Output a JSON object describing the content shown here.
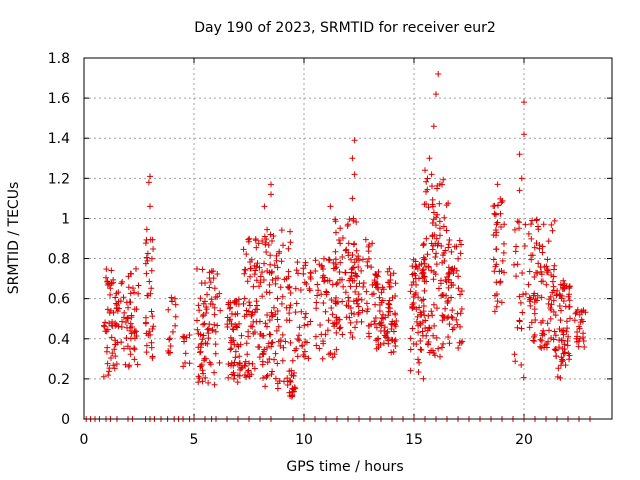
{
  "chart_data": {
    "type": "scatter",
    "title": "Day 190 of 2023, SRMTID for receiver eur2",
    "xlabel": "GPS time / hours",
    "ylabel": "SRMTID / TECUs",
    "xlim": [
      0,
      24
    ],
    "ylim": [
      0,
      1.8
    ],
    "xticks": [
      "0",
      "5",
      "10",
      "15",
      "20"
    ],
    "yticks": [
      "0",
      "0.2",
      "0.4",
      "0.6",
      "0.8",
      "1",
      "1.2",
      "1.4",
      "1.6",
      "1.8"
    ],
    "grid": true,
    "marker": "+",
    "color": "#e00000",
    "series": [
      {
        "name": "SRMTID",
        "clusters": [
          {
            "x": [
              0.9,
              1.6
            ],
            "y": [
              0.2,
              0.75
            ],
            "n": 60
          },
          {
            "x": [
              1.6,
              2.5
            ],
            "y": [
              0.25,
              0.75
            ],
            "n": 55
          },
          {
            "x": [
              2.8,
              3.2
            ],
            "y": [
              0.3,
              0.95
            ],
            "n": 35
          },
          {
            "x": [
              3.8,
              4.2
            ],
            "y": [
              0.3,
              0.62
            ],
            "n": 15
          },
          {
            "x": [
              4.5,
              4.8
            ],
            "y": [
              0.25,
              0.42
            ],
            "n": 10
          },
          {
            "x": [
              5.1,
              6.2
            ],
            "y": [
              0.15,
              0.75
            ],
            "n": 80
          },
          {
            "x": [
              6.5,
              7.2
            ],
            "y": [
              0.18,
              0.6
            ],
            "n": 60
          },
          {
            "x": [
              7.2,
              8.2
            ],
            "y": [
              0.2,
              0.9
            ],
            "n": 90
          },
          {
            "x": [
              8.2,
              9.4
            ],
            "y": [
              0.15,
              0.95
            ],
            "n": 100
          },
          {
            "x": [
              9.3,
              9.6
            ],
            "y": [
              0.1,
              0.3
            ],
            "n": 20
          },
          {
            "x": [
              9.5,
              10.4
            ],
            "y": [
              0.3,
              0.8
            ],
            "n": 40
          },
          {
            "x": [
              10.5,
              11.5
            ],
            "y": [
              0.3,
              0.8
            ],
            "n": 60
          },
          {
            "x": [
              11.4,
              12.5
            ],
            "y": [
              0.4,
              1.0
            ],
            "n": 90
          },
          {
            "x": [
              12.5,
              13.2
            ],
            "y": [
              0.4,
              0.9
            ],
            "n": 30
          },
          {
            "x": [
              13.2,
              14.2
            ],
            "y": [
              0.3,
              0.75
            ],
            "n": 90
          },
          {
            "x": [
              14.8,
              15.5
            ],
            "y": [
              0.2,
              0.8
            ],
            "n": 60
          },
          {
            "x": [
              15.4,
              16.6
            ],
            "y": [
              0.3,
              1.2
            ],
            "n": 120
          },
          {
            "x": [
              16.5,
              17.2
            ],
            "y": [
              0.35,
              0.9
            ],
            "n": 50
          },
          {
            "x": [
              18.6,
              19.1
            ],
            "y": [
              0.5,
              1.1
            ],
            "n": 40
          },
          {
            "x": [
              19.5,
              20.1
            ],
            "y": [
              0.2,
              1.0
            ],
            "n": 25
          },
          {
            "x": [
              20.2,
              21.4
            ],
            "y": [
              0.35,
              1.0
            ],
            "n": 100
          },
          {
            "x": [
              21.4,
              22.1
            ],
            "y": [
              0.2,
              0.7
            ],
            "n": 70
          },
          {
            "x": [
              22.3,
              22.8
            ],
            "y": [
              0.3,
              0.55
            ],
            "n": 25
          }
        ],
        "outliers": [
          [
            3.0,
            1.21
          ],
          [
            2.95,
            1.18
          ],
          [
            3.0,
            1.06
          ],
          [
            8.2,
            1.06
          ],
          [
            8.5,
            1.17
          ],
          [
            8.5,
            1.12
          ],
          [
            11.2,
            1.06
          ],
          [
            12.3,
            1.39
          ],
          [
            12.2,
            1.3
          ],
          [
            12.3,
            1.22
          ],
          [
            12.2,
            1.1
          ],
          [
            15.5,
            1.24
          ],
          [
            15.7,
            1.3
          ],
          [
            15.8,
            1.22
          ],
          [
            15.9,
            1.46
          ],
          [
            16.0,
            1.62
          ],
          [
            16.1,
            1.72
          ],
          [
            18.8,
            1.17
          ],
          [
            19.8,
            1.32
          ],
          [
            19.8,
            1.14
          ],
          [
            19.9,
            1.2
          ],
          [
            20.0,
            1.42
          ],
          [
            20.0,
            1.58
          ]
        ],
        "zero_x": [
          0.1,
          0.3,
          0.5,
          0.7,
          1.0,
          1.2,
          1.5,
          2.0,
          2.2,
          2.8,
          3.0,
          3.2,
          3.5,
          3.8,
          4.1,
          4.3,
          4.5,
          4.8,
          5.0,
          5.5,
          5.8,
          6.0,
          6.5,
          7.0,
          7.5,
          8.0,
          8.5,
          9.5,
          10.0,
          10.5,
          11.0,
          11.5,
          12.0,
          12.5,
          13.0,
          13.5,
          14.0,
          14.5,
          15.0,
          15.5,
          16.0,
          16.5,
          17.0,
          17.5,
          18.0,
          18.5,
          19.0,
          19.5,
          20.0,
          20.5,
          21.0,
          21.5,
          22.0,
          22.5,
          23.0
        ]
      }
    ]
  }
}
